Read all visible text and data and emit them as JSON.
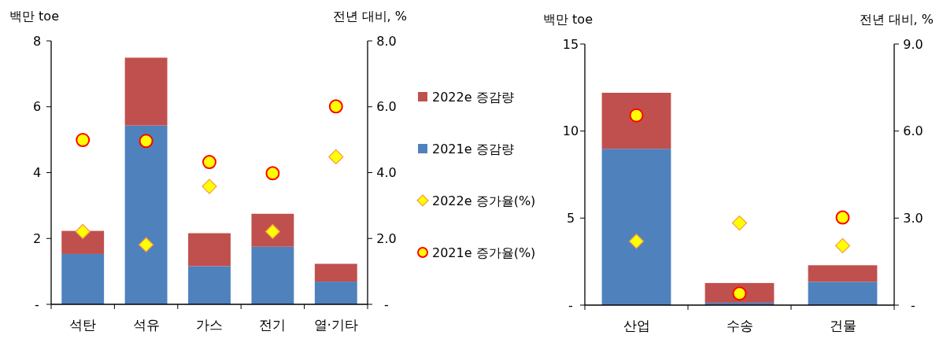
{
  "chart_data": [
    {
      "type": "bar",
      "stacked": true,
      "ylabel": "백만 toe",
      "y2label": "전년 대비, %",
      "categories": [
        "석탄",
        "석유",
        "가스",
        "전기",
        "열·기타"
      ],
      "series": [
        {
          "name": "2021e 증감량",
          "color": "#4f81bd",
          "values": [
            1.53,
            5.43,
            1.16,
            1.75,
            0.69
          ]
        },
        {
          "name": "2022e 증감량",
          "color": "#c0504d",
          "values": [
            0.7,
            2.06,
            1.0,
            1.0,
            0.54
          ]
        },
        {
          "name": "2022e 증가율(%)",
          "type": "scatter",
          "axis": "y2",
          "marker": "diamond",
          "color": "#ffff00",
          "x": [
            "석탄",
            "석유",
            "가스",
            "전기",
            "열·기타"
          ],
          "values": [
            2.21,
            1.81,
            3.58,
            2.21,
            4.48
          ]
        },
        {
          "name": "2021e 증가율(%)",
          "type": "scatter",
          "axis": "y2",
          "marker": "circle",
          "color": "#ffff00",
          "x": [
            "석탄",
            "석유",
            "가스",
            "전기",
            "열·기타"
          ],
          "values": [
            4.99,
            4.96,
            4.32,
            3.98,
            6.01
          ]
        }
      ],
      "ylim": [
        0,
        8
      ],
      "yticks": [
        {
          "value": 0,
          "label": "-"
        },
        2,
        4,
        6,
        8
      ],
      "y2lim": [
        0,
        8
      ],
      "y2ticks": [
        {
          "value": 0,
          "label": "-"
        },
        {
          "value": 2,
          "label": "2.0"
        },
        {
          "value": 4,
          "label": "4.0"
        },
        {
          "value": 6,
          "label": "6.0"
        },
        {
          "value": 8,
          "label": "8.0"
        }
      ],
      "legend": "right"
    },
    {
      "type": "bar",
      "stacked": true,
      "ylabel": "백만 toe",
      "y2label": "전년 대비, %",
      "categories": [
        "산업",
        "수송",
        "건물"
      ],
      "series": [
        {
          "color": "#4f81bd",
          "values": [
            8.98,
            0.14,
            1.34
          ]
        },
        {
          "color": "#c0504d",
          "values": [
            3.22,
            1.13,
            0.95
          ]
        },
        {
          "type": "scatter",
          "axis": "y2",
          "marker": "diamond",
          "color": "#ffff00",
          "x": [
            "산업",
            "수송",
            "건물"
          ],
          "values": [
            2.2,
            2.83,
            2.05
          ]
        },
        {
          "type": "scatter",
          "axis": "y2",
          "marker": "circle",
          "color": "#ffff00",
          "x": [
            "산업",
            "수송",
            "건물"
          ],
          "values": [
            6.54,
            0.4,
            3.02
          ]
        }
      ],
      "ylim": [
        0,
        15
      ],
      "yticks": [
        {
          "value": 0,
          "label": "-"
        },
        5,
        10,
        15
      ],
      "y2lim": [
        0,
        9
      ],
      "y2ticks": [
        {
          "value": 0,
          "label": "-"
        },
        {
          "value": 3,
          "label": "3.0"
        },
        {
          "value": 6,
          "label": "6.0"
        },
        {
          "value": 9,
          "label": "9.0"
        }
      ]
    }
  ]
}
